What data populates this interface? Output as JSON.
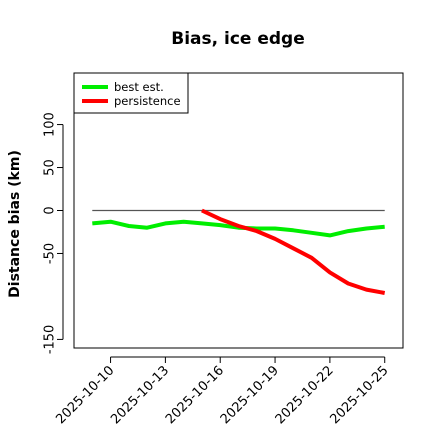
{
  "chart_data": {
    "type": "line",
    "title": "Bias, ice edge",
    "xlabel": "",
    "ylabel": "Distance bias (km)",
    "x_ticks": [
      "2025-10-10",
      "2025-10-13",
      "2025-10-16",
      "2025-10-19",
      "2025-10-22",
      "2025-10-25"
    ],
    "y_ticks": [
      100,
      50,
      0,
      -50,
      -150
    ],
    "xlim": [
      "2025-10-08",
      "2025-10-26"
    ],
    "ylim": [
      -160,
      160
    ],
    "grid": false,
    "legend_position": "top-left",
    "reference_line": {
      "y": 0,
      "x_from": "2025-10-09",
      "x_to": "2025-10-25",
      "color": "#555555"
    },
    "series": [
      {
        "name": "best est.",
        "color": "#00ee00",
        "points": [
          [
            "2025-10-09",
            -15
          ],
          [
            "2025-10-10",
            -13
          ],
          [
            "2025-10-11",
            -18
          ],
          [
            "2025-10-12",
            -20
          ],
          [
            "2025-10-13",
            -15
          ],
          [
            "2025-10-14",
            -13
          ],
          [
            "2025-10-15",
            -15
          ],
          [
            "2025-10-16",
            -17
          ],
          [
            "2025-10-17",
            -20
          ],
          [
            "2025-10-18",
            -21
          ],
          [
            "2025-10-19",
            -21
          ],
          [
            "2025-10-20",
            -23
          ],
          [
            "2025-10-21",
            -26
          ],
          [
            "2025-10-22",
            -29
          ],
          [
            "2025-10-23",
            -24
          ],
          [
            "2025-10-24",
            -21
          ],
          [
            "2025-10-25",
            -19
          ]
        ]
      },
      {
        "name": "persistence",
        "color": "#ff0000",
        "points": [
          [
            "2025-10-15",
            0
          ],
          [
            "2025-10-16",
            -10
          ],
          [
            "2025-10-17",
            -18
          ],
          [
            "2025-10-18",
            -24
          ],
          [
            "2025-10-19",
            -33
          ],
          [
            "2025-10-20",
            -44
          ],
          [
            "2025-10-21",
            -55
          ],
          [
            "2025-10-22",
            -72
          ],
          [
            "2025-10-23",
            -85
          ],
          [
            "2025-10-24",
            -92
          ],
          [
            "2025-10-25",
            -96
          ]
        ]
      }
    ]
  }
}
